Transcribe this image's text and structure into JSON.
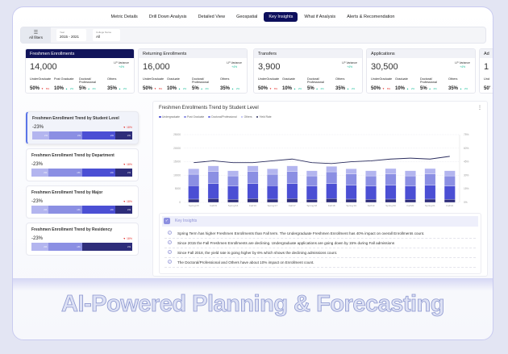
{
  "tabs": [
    "Metric Details",
    "Drill Down Analysis",
    "Detailed View",
    "Geospatial",
    "Key Insights",
    "What if Analysis",
    "Alerts  & Recomendation"
  ],
  "active_tab": "Key Insights",
  "filters": {
    "all_label": "All filters",
    "year_label": "Year",
    "year_value": "2015 - 2021",
    "college_label": "College Name",
    "college_value": "All"
  },
  "kpis": [
    {
      "title": "Freshmen Enrollments",
      "value": "14,000",
      "var_label": "LP Variance",
      "var_value": "+4%",
      "segments": [
        {
          "name": "UnderGraduate",
          "pct": "50%",
          "chg": "8%",
          "dir": "down"
        },
        {
          "name": "Post Graduate",
          "pct": "10%",
          "chg": "2%",
          "dir": "up"
        },
        {
          "name": "Doctoral/ Professional",
          "pct": "5%",
          "chg": "2%",
          "dir": "up"
        },
        {
          "name": "Others",
          "pct": "35%",
          "chg": "2%",
          "dir": "up"
        }
      ]
    },
    {
      "title": "Returning  Enrollments",
      "value": "16,000",
      "var_label": "LP Variance",
      "var_value": "+4%",
      "segments": [
        {
          "name": "UnderGraduate",
          "pct": "50%",
          "chg": "8%",
          "dir": "down"
        },
        {
          "name": "Graduate",
          "pct": "10%",
          "chg": "2%",
          "dir": "up"
        },
        {
          "name": "Doctoral/ Professional",
          "pct": "5%",
          "chg": "2%",
          "dir": "up"
        },
        {
          "name": "Others",
          "pct": "35%",
          "chg": "2%",
          "dir": "up"
        }
      ]
    },
    {
      "title": "Transfers",
      "value": "3,900",
      "var_label": "LP Variance",
      "var_value": "+4%",
      "segments": [
        {
          "name": "UnderGraduate",
          "pct": "50%",
          "chg": "8%",
          "dir": "down"
        },
        {
          "name": "Graduate",
          "pct": "10%",
          "chg": "2%",
          "dir": "up"
        },
        {
          "name": "Doctoral/ Professional",
          "pct": "5%",
          "chg": "2%",
          "dir": "up"
        },
        {
          "name": "Others",
          "pct": "35%",
          "chg": "2%",
          "dir": "up"
        }
      ]
    },
    {
      "title": "Applications",
      "value": "30,500",
      "var_label": "LP Variance",
      "var_value": "+4%",
      "segments": [
        {
          "name": "UnderGraduate",
          "pct": "50%",
          "chg": "8%",
          "dir": "down"
        },
        {
          "name": "Graduate",
          "pct": "10%",
          "chg": "2%",
          "dir": "up"
        },
        {
          "name": "Doctoral/ Professional",
          "pct": "5%",
          "chg": "2%",
          "dir": "up"
        },
        {
          "name": "Others",
          "pct": "35%",
          "chg": "2%",
          "dir": "up"
        }
      ]
    },
    {
      "title": "Ad",
      "value": "1",
      "var_label": "",
      "var_value": "",
      "segments": [
        {
          "name": "Und",
          "pct": "50'",
          "chg": "",
          "dir": "down"
        }
      ]
    }
  ],
  "trend_cards": [
    {
      "title": "Freshmen Enrollment Trend by Student Level",
      "value": "-23%",
      "change": "18%",
      "bars": [
        "x%",
        "x%",
        "x%",
        "x%"
      ]
    },
    {
      "title": "Freshmen Enrollment Trend by Department",
      "value": "-23%",
      "change": "18%",
      "bars": [
        "x%",
        "x%",
        "x%",
        "x%"
      ]
    },
    {
      "title": "Freshmen Enrollment Trend by Major",
      "value": "-23%",
      "change": "18%",
      "bars": [
        "x%",
        "x%",
        "x%",
        "x%"
      ]
    },
    {
      "title": "Freshmen Enrollment Trend by Residency",
      "value": "-23%",
      "change": "18%",
      "bars": [
        "x%",
        "x%",
        "x%"
      ]
    }
  ],
  "insights": {
    "title": "Key Insights",
    "items": [
      "Spring Term has higher Freshmen Enrollments than Fall term. The Undergraduate Freshmen Enrollment has 40% impact on overall Enrollments count.",
      "Since 2015 the Fall Freshmen Enrollments are declining. Undergraduate applications are going down by 15% during Fall admissions",
      "Since Fall 2018, the yield rate is going higher by 6% which shows the declining admissions count.",
      "The Doctoral/Professional and Others have about 10% impact on Enrollment count."
    ]
  },
  "headline": "AI-Powered Planning & Forecasting",
  "colors": {
    "navy": "#11145a",
    "seg1": "#2e2d7a",
    "seg2": "#4b4fd4",
    "seg3": "#8b8fe3",
    "seg4": "#b3b5ef",
    "line": "#2b2d5e"
  },
  "chart_data": {
    "type": "bar",
    "title": "Freshmen Enrollments Trend by Student Level",
    "categories": [
      "Spring'15",
      "Fall'15",
      "Spring'16",
      "Fall'16",
      "Spring'17",
      "Fall'17",
      "Spring'18",
      "Fall'18",
      "Spring'19",
      "Fall'19",
      "Spring'20",
      "Fall'20",
      "Spring'21",
      "Fall'21"
    ],
    "series": [
      {
        "name": "Others",
        "values": [
          1200,
          1400,
          1100,
          1400,
          1200,
          1400,
          1100,
          1400,
          1200,
          1100,
          1200,
          1100,
          1200,
          1100
        ]
      },
      {
        "name": "Undergraduate",
        "values": [
          5000,
          5500,
          4900,
          5500,
          5000,
          5500,
          4900,
          5500,
          5100,
          4900,
          5100,
          4900,
          5100,
          4900
        ]
      },
      {
        "name": "Post Graduate",
        "values": [
          4200,
          4500,
          3800,
          4500,
          4200,
          4500,
          3800,
          4400,
          4200,
          3800,
          4200,
          3800,
          4200,
          3800
        ]
      },
      {
        "name": "Doctoral/Professional",
        "values": [
          2000,
          2100,
          1900,
          2100,
          2000,
          2100,
          1900,
          2000,
          1900,
          1900,
          2000,
          1900,
          2000,
          1900
        ]
      }
    ],
    "line": {
      "name": "Yield Rate",
      "values": [
        44,
        46,
        44,
        44,
        46,
        48,
        44,
        43,
        45,
        46,
        48,
        49,
        48,
        51
      ]
    },
    "legend": [
      "Undergraduate",
      "Post Graduate",
      "Doctoral/Professional",
      "Others",
      "Yield Rate"
    ],
    "ylim": [
      0,
      25000
    ],
    "yticks": [
      "0",
      "5000",
      "10000",
      "15000",
      "20000",
      "25000"
    ],
    "y2lim": [
      0,
      75
    ],
    "y2ticks": [
      "0%",
      "15%",
      "30%",
      "45%",
      "60%",
      "75%"
    ],
    "grid": true,
    "legend_position": "top-left"
  }
}
